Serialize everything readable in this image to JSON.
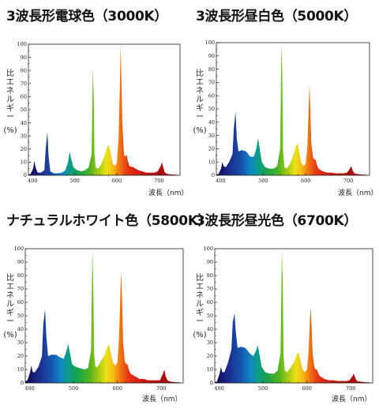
{
  "chart_data": [
    {
      "type": "area",
      "title": "3波長形電球色（3000K）",
      "ylabel_chars": [
        "比",
        "エ",
        "ネ",
        "ル",
        "ギ",
        "ー"
      ],
      "ylabel_unit": "(%)",
      "xlabel": "波長（nm）",
      "xlim": [
        390,
        750
      ],
      "ylim": [
        0,
        100
      ],
      "yticks": [
        0,
        10,
        20,
        30,
        40,
        50,
        60,
        70,
        80,
        90,
        100
      ],
      "xticks": [
        400,
        500,
        600,
        700
      ],
      "series": [
        {
          "x": [
            380,
            395,
            401,
            404,
            407,
            412,
            420,
            428,
            431,
            435,
            438,
            442,
            450,
            460,
            470,
            478,
            484,
            488,
            492,
            497,
            505,
            515,
            525,
            533,
            540,
            543,
            545,
            547,
            550,
            555,
            562,
            570,
            577,
            581,
            585,
            590,
            596,
            600,
            604,
            607,
            609,
            611,
            613,
            617,
            620,
            623,
            626,
            630,
            640,
            650,
            660,
            670,
            680,
            690,
            697,
            704,
            707,
            710,
            714,
            720,
            735,
            750
          ],
          "y": [
            0,
            1,
            5,
            11,
            6,
            2,
            2,
            4,
            20,
            33,
            14,
            3,
            1.5,
            1.5,
            2,
            4,
            10,
            18,
            12,
            6,
            4,
            3,
            4,
            6,
            16,
            82,
            60,
            16,
            6,
            5,
            8,
            14,
            22,
            23,
            17,
            9,
            7,
            10,
            28,
            65,
            100,
            70,
            40,
            16,
            14,
            16,
            11,
            7,
            6,
            4,
            3,
            2,
            2,
            2,
            3,
            7,
            10,
            6,
            2,
            1,
            0.5,
            0
          ]
        }
      ]
    },
    {
      "type": "area",
      "title": "3波長形昼白色（5000K）",
      "ylabel_chars": [
        "比",
        "エ",
        "ネ",
        "ル",
        "ギ",
        "ー"
      ],
      "ylabel_unit": "(%)",
      "xlabel": "波長（nm）",
      "xlim": [
        390,
        750
      ],
      "ylim": [
        0,
        100
      ],
      "yticks": [
        0,
        10,
        20,
        30,
        40,
        50,
        60,
        70,
        80,
        90,
        100
      ],
      "xticks": [
        400,
        500,
        600,
        700
      ],
      "series": [
        {
          "x": [
            380,
            395,
            401,
            404,
            407,
            412,
            420,
            428,
            431,
            435,
            438,
            442,
            450,
            460,
            470,
            478,
            484,
            488,
            492,
            497,
            505,
            515,
            525,
            533,
            540,
            543,
            545,
            547,
            550,
            555,
            562,
            570,
            577,
            581,
            585,
            590,
            596,
            600,
            604,
            607,
            609,
            611,
            613,
            617,
            620,
            623,
            626,
            630,
            640,
            650,
            660,
            670,
            680,
            690,
            697,
            704,
            707,
            710,
            714,
            720,
            735,
            750
          ],
          "y": [
            0,
            1,
            5,
            10,
            7,
            6,
            10,
            16,
            35,
            48,
            28,
            18,
            19,
            18,
            14,
            14,
            20,
            28,
            20,
            10,
            6,
            5,
            5,
            7,
            20,
            99,
            75,
            18,
            6,
            5,
            8,
            14,
            22,
            24,
            17,
            9,
            7,
            9,
            22,
            50,
            69,
            48,
            25,
            14,
            12,
            12,
            8,
            5,
            3,
            2,
            2,
            1.5,
            1.5,
            1.5,
            2,
            5,
            7,
            4,
            1.5,
            1,
            0.5,
            0
          ]
        }
      ]
    },
    {
      "type": "area",
      "title": "ナチュラルホワイト色（5800K）",
      "ylabel_chars": [
        "比",
        "エ",
        "ネ",
        "ル",
        "ギ",
        "ー"
      ],
      "ylabel_unit": "(%)",
      "xlabel": "波長（nm）",
      "xlim": [
        390,
        750
      ],
      "ylim": [
        0,
        100
      ],
      "yticks": [
        0,
        10,
        20,
        30,
        40,
        50,
        60,
        70,
        80,
        90,
        100
      ],
      "xticks": [
        400,
        500,
        600,
        700
      ],
      "series": [
        {
          "x": [
            380,
            395,
            401,
            404,
            407,
            412,
            420,
            428,
            431,
            435,
            438,
            442,
            450,
            460,
            470,
            478,
            484,
            488,
            492,
            497,
            505,
            515,
            525,
            533,
            540,
            543,
            545,
            547,
            550,
            555,
            562,
            570,
            577,
            581,
            585,
            590,
            596,
            600,
            604,
            607,
            609,
            611,
            613,
            617,
            620,
            623,
            626,
            630,
            640,
            650,
            660,
            670,
            680,
            690,
            697,
            704,
            707,
            710,
            714,
            720,
            735,
            750
          ],
          "y": [
            0,
            2,
            8,
            13,
            8,
            8,
            12,
            20,
            43,
            55,
            35,
            20,
            21,
            21,
            19,
            18,
            24,
            29,
            22,
            14,
            12,
            11,
            10,
            11,
            24,
            99,
            74,
            22,
            12,
            12,
            16,
            20,
            27,
            29,
            22,
            15,
            13,
            15,
            35,
            68,
            83,
            58,
            30,
            16,
            14,
            14,
            10,
            7,
            5,
            3,
            3,
            2,
            2,
            2,
            2,
            7,
            10,
            5,
            2,
            1,
            0.5,
            0
          ]
        }
      ]
    },
    {
      "type": "area",
      "title": "3波長形昼光色（6700K）",
      "ylabel_chars": [
        "比",
        "エ",
        "ネ",
        "ル",
        "ギ",
        "ー"
      ],
      "ylabel_unit": "(%)",
      "xlabel": "波長（nm）",
      "xlim": [
        390,
        750
      ],
      "ylim": [
        0,
        100
      ],
      "yticks": [
        0,
        10,
        20,
        30,
        40,
        50,
        60,
        70,
        80,
        90,
        100
      ],
      "xticks": [
        400,
        500,
        600,
        700
      ],
      "series": [
        {
          "x": [
            380,
            395,
            401,
            404,
            407,
            412,
            420,
            428,
            431,
            435,
            438,
            442,
            450,
            460,
            470,
            478,
            484,
            488,
            492,
            497,
            505,
            515,
            525,
            533,
            540,
            543,
            545,
            547,
            550,
            555,
            562,
            570,
            577,
            581,
            585,
            590,
            596,
            600,
            604,
            607,
            609,
            611,
            613,
            617,
            620,
            623,
            626,
            630,
            640,
            650,
            660,
            670,
            680,
            690,
            697,
            704,
            707,
            710,
            714,
            720,
            735,
            750
          ],
          "y": [
            0,
            1,
            7,
            12,
            8,
            8,
            15,
            25,
            45,
            52,
            38,
            26,
            27,
            26,
            22,
            20,
            24,
            28,
            21,
            12,
            8,
            7,
            7,
            9,
            22,
            99,
            74,
            20,
            9,
            8,
            11,
            15,
            21,
            23,
            17,
            10,
            8,
            10,
            24,
            48,
            56,
            40,
            22,
            12,
            10,
            10,
            7,
            5,
            3,
            2,
            2,
            1.5,
            1.5,
            1.5,
            2,
            5,
            7,
            4,
            1.5,
            1,
            0.5,
            0
          ]
        }
      ]
    }
  ]
}
